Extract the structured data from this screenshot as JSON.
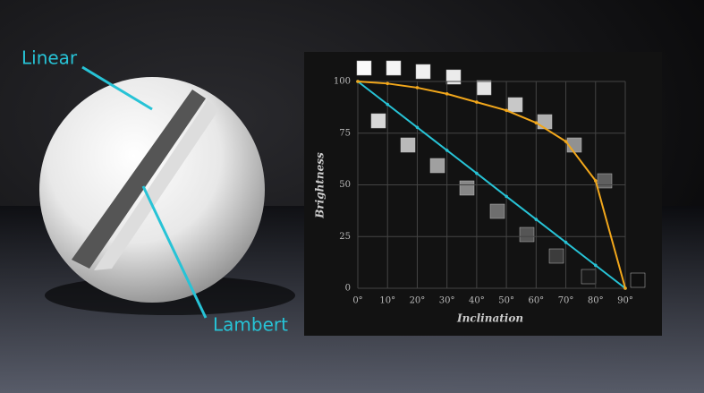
{
  "chart_data": {
    "type": "line",
    "x_label": "Inclination",
    "y_label": "Brightness",
    "x": [
      0,
      10,
      20,
      30,
      40,
      50,
      60,
      70,
      80,
      90
    ],
    "series": [
      {
        "name": "Linear",
        "color": "#27c3d6",
        "values": [
          100,
          88.9,
          77.8,
          66.7,
          55.6,
          44.4,
          33.3,
          22.2,
          11.1,
          0
        ]
      },
      {
        "name": "Lambert",
        "color": "#f2a71b",
        "values": [
          100,
          99,
          97,
          94,
          90,
          86,
          80,
          71,
          52,
          0
        ]
      }
    ],
    "xlim": [
      0,
      90
    ],
    "xticks": [
      {
        "value": 0,
        "label": "0°"
      },
      {
        "value": 10,
        "label": "10°"
      },
      {
        "value": 20,
        "label": "20°"
      },
      {
        "value": 30,
        "label": "30°"
      },
      {
        "value": 40,
        "label": "40°"
      },
      {
        "value": 50,
        "label": "50°"
      },
      {
        "value": 60,
        "label": "60°"
      },
      {
        "value": 70,
        "label": "70°"
      },
      {
        "value": 80,
        "label": "80°"
      },
      {
        "value": 90,
        "label": "90°"
      }
    ],
    "ylim": [
      0,
      100
    ],
    "yticks": [
      0,
      25,
      50,
      75,
      100
    ],
    "grid": true
  }
}
